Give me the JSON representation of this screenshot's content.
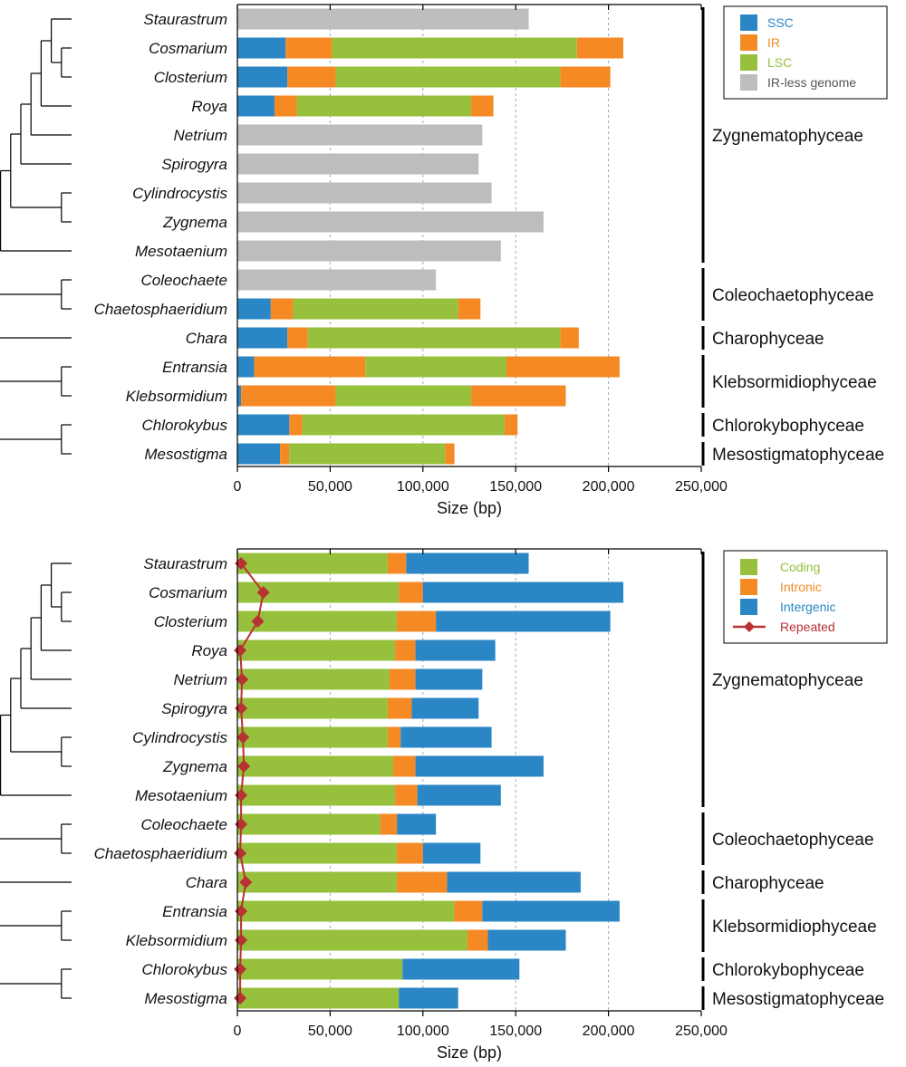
{
  "colors": {
    "ssc": "#2a86c4",
    "ir": "#f58a25",
    "lsc": "#97c03c",
    "irless": "#bdbdbd",
    "coding": "#97c03c",
    "intronic": "#f58a25",
    "intergenic": "#2a86c4",
    "repeated": "#b83232"
  },
  "taxa": [
    "Staurastrum",
    "Cosmarium",
    "Closterium",
    "Roya",
    "Netrium",
    "Spirogyra",
    "Cylindrocystis",
    "Zygnema",
    "Mesotaenium",
    "Coleochaete",
    "Chaetosphaeridium",
    "Chara",
    "Entransia",
    "Klebsormidium",
    "Chlorokybus",
    "Mesostigma"
  ],
  "groups": [
    {
      "name": "Zygnematophyceae",
      "first": 0,
      "last": 8
    },
    {
      "name": "Coleochaetophyceae",
      "first": 9,
      "last": 10
    },
    {
      "name": "Charophyceae",
      "first": 11,
      "last": 11
    },
    {
      "name": "Klebsormidiophyceae",
      "first": 12,
      "last": 13
    },
    {
      "name": "Chlorokybophyceae",
      "first": 14,
      "last": 14
    },
    {
      "name": "Mesostigmatophyceae",
      "first": 15,
      "last": 15
    }
  ],
  "chart_data": [
    {
      "type": "bar",
      "orientation": "horizontal",
      "stacked": true,
      "xlabel": "Size (bp)",
      "xlim": [
        0,
        250000
      ],
      "xticks": [
        0,
        50000,
        100000,
        150000,
        200000,
        250000
      ],
      "xtick_labels": [
        "0",
        "50,000",
        "100,000",
        "150,000",
        "200,000",
        "250,000"
      ],
      "gridlines": [
        50000,
        100000,
        150000,
        200000
      ],
      "legend": "top-right",
      "categories": [
        "Staurastrum",
        "Cosmarium",
        "Closterium",
        "Roya",
        "Netrium",
        "Spirogyra",
        "Cylindrocystis",
        "Zygnema",
        "Mesotaenium",
        "Coleochaete",
        "Chaetosphaeridium",
        "Chara",
        "Entransia",
        "Klebsormidium",
        "Chlorokybus",
        "Mesostigma"
      ],
      "series": [
        {
          "name": "SSC",
          "key": "ssc",
          "values": [
            0,
            26000,
            27000,
            20000,
            0,
            0,
            0,
            0,
            0,
            0,
            18000,
            27000,
            9000,
            2000,
            28000,
            23000
          ]
        },
        {
          "name": "IR",
          "key": "ir",
          "values": [
            0,
            25000,
            26000,
            12000,
            0,
            0,
            0,
            0,
            0,
            0,
            12000,
            11000,
            60000,
            51000,
            7000,
            5000
          ]
        },
        {
          "name": "LSC",
          "key": "lsc",
          "values": [
            0,
            132000,
            121000,
            94000,
            0,
            0,
            0,
            0,
            0,
            0,
            89000,
            136000,
            76000,
            73000,
            109000,
            84000
          ]
        },
        {
          "name": "IR",
          "key": "ir",
          "legend": false,
          "values": [
            0,
            25000,
            27000,
            12000,
            0,
            0,
            0,
            0,
            0,
            0,
            12000,
            10000,
            61000,
            51000,
            7000,
            5000
          ]
        },
        {
          "name": "IR-less genome",
          "key": "irless",
          "values": [
            157000,
            0,
            0,
            0,
            132000,
            130000,
            137000,
            165000,
            142000,
            107000,
            0,
            0,
            0,
            0,
            0,
            0
          ]
        }
      ]
    },
    {
      "type": "bar",
      "orientation": "horizontal",
      "stacked": true,
      "xlabel": "Size (bp)",
      "xlim": [
        0,
        250000
      ],
      "xticks": [
        0,
        50000,
        100000,
        150000,
        200000,
        250000
      ],
      "xtick_labels": [
        "0",
        "50,000",
        "100,000",
        "150,000",
        "200,000",
        "250,000"
      ],
      "gridlines": [
        50000,
        100000,
        150000,
        200000
      ],
      "legend": "top-right",
      "categories": [
        "Staurastrum",
        "Cosmarium",
        "Closterium",
        "Roya",
        "Netrium",
        "Spirogyra",
        "Cylindrocystis",
        "Zygnema",
        "Mesotaenium",
        "Coleochaete",
        "Chaetosphaeridium",
        "Chara",
        "Entransia",
        "Klebsormidium",
        "Chlorokybus",
        "Mesostigma"
      ],
      "series": [
        {
          "name": "Coding",
          "key": "coding",
          "values": [
            81000,
            87000,
            86000,
            85000,
            82000,
            81000,
            81000,
            84000,
            85000,
            77000,
            86000,
            86000,
            117000,
            124000,
            89000,
            87000
          ]
        },
        {
          "name": "Intronic",
          "key": "intronic",
          "values": [
            10000,
            13000,
            21000,
            11000,
            14000,
            13000,
            7000,
            12000,
            12000,
            9000,
            14000,
            27000,
            15000,
            11000,
            0,
            0
          ]
        },
        {
          "name": "Intergenic",
          "key": "intergenic",
          "values": [
            66000,
            108000,
            94000,
            43000,
            36000,
            36000,
            49000,
            69000,
            45000,
            21000,
            31000,
            72000,
            74000,
            42000,
            63000,
            32000
          ]
        }
      ],
      "line": {
        "name": "Repeated",
        "key": "repeated",
        "values": [
          2000,
          14000,
          11000,
          1500,
          2500,
          2000,
          3000,
          3500,
          2000,
          2000,
          1500,
          4500,
          2000,
          2000,
          1500,
          1500
        ]
      }
    }
  ]
}
